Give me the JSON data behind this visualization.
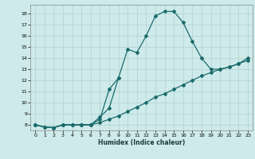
{
  "xlabel": "Humidex (Indice chaleur)",
  "bg_color": "#ceeaea",
  "line_color": "#1a6b6b",
  "grid_color": "#b8d8d8",
  "xlim": [
    -0.5,
    23.5
  ],
  "ylim": [
    7.5,
    18.8
  ],
  "yticks": [
    8,
    9,
    10,
    11,
    12,
    13,
    14,
    15,
    16,
    17,
    18
  ],
  "xticks": [
    0,
    1,
    2,
    3,
    4,
    5,
    6,
    7,
    8,
    9,
    10,
    11,
    12,
    13,
    14,
    15,
    16,
    17,
    18,
    19,
    20,
    21,
    22,
    23
  ],
  "line1_x": [
    0,
    1,
    2,
    3,
    4,
    5,
    6,
    7,
    8,
    9,
    10,
    11,
    12,
    13,
    14,
    15,
    16,
    17,
    18,
    19,
    20,
    21,
    22,
    23
  ],
  "line1_y": [
    8.0,
    7.8,
    7.75,
    8.0,
    8.0,
    8.0,
    8.0,
    8.5,
    11.2,
    12.2,
    14.8,
    14.5,
    16.0,
    17.8,
    18.2,
    18.2,
    17.2,
    15.5,
    14.0,
    13.0,
    13.0,
    13.2,
    13.5,
    14.0
  ],
  "line2_x": [
    0,
    1,
    2,
    3,
    4,
    5,
    6,
    7,
    8,
    9,
    10,
    11,
    12,
    13,
    14,
    15,
    16,
    17,
    18,
    19,
    20,
    21,
    22,
    23
  ],
  "line2_y": [
    8.0,
    7.8,
    7.75,
    8.0,
    8.0,
    8.0,
    8.0,
    8.2,
    8.5,
    8.8,
    9.2,
    9.6,
    10.0,
    10.5,
    10.8,
    11.2,
    11.6,
    12.0,
    12.4,
    12.7,
    13.0,
    13.2,
    13.5,
    13.8
  ],
  "line3_x": [
    0,
    1,
    2,
    3,
    4,
    5,
    6,
    7,
    8,
    9
  ],
  "line3_y": [
    8.0,
    7.8,
    7.75,
    8.0,
    8.0,
    8.0,
    8.0,
    8.7,
    9.5,
    12.2
  ]
}
